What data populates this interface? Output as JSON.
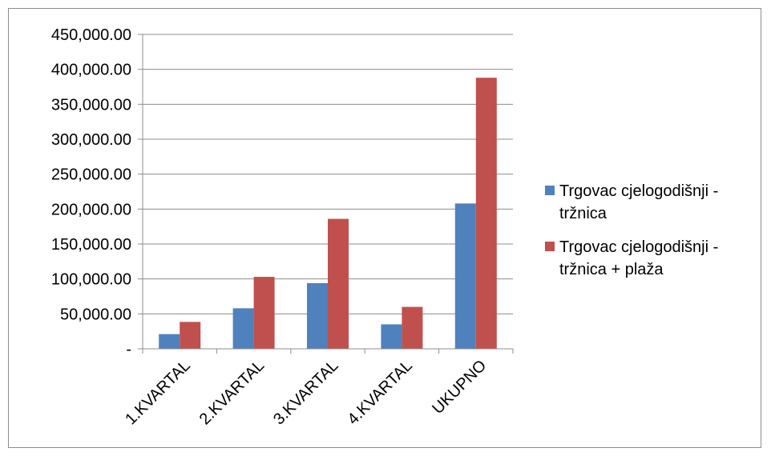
{
  "chart_data": {
    "type": "bar",
    "categories": [
      "1.KVARTAL",
      "2.KVARTAL",
      "3.KVARTAL",
      "4.KVARTAL",
      "UKUPNO"
    ],
    "series": [
      {
        "name": "Trgovac cjelogodišnji - tržnica",
        "color": "#4f81bd",
        "values": [
          21000,
          58000,
          94000,
          35000,
          208000
        ]
      },
      {
        "name": "Trgovac cjelogodišnji - tržnica + plaža",
        "color": "#c0504d",
        "values": [
          38500,
          103000,
          186000,
          60000,
          388000
        ]
      }
    ],
    "ylim": [
      0,
      450000
    ],
    "yticks": [
      0,
      50000,
      100000,
      150000,
      200000,
      250000,
      300000,
      350000,
      400000,
      450000
    ],
    "ytick_labels": [
      "-",
      "50,000.00",
      "100,000.00",
      "150,000.00",
      "200,000.00",
      "250,000.00",
      "300,000.00",
      "350,000.00",
      "400,000.00",
      "450,000.00"
    ],
    "grid": true,
    "legend_position": "right"
  }
}
